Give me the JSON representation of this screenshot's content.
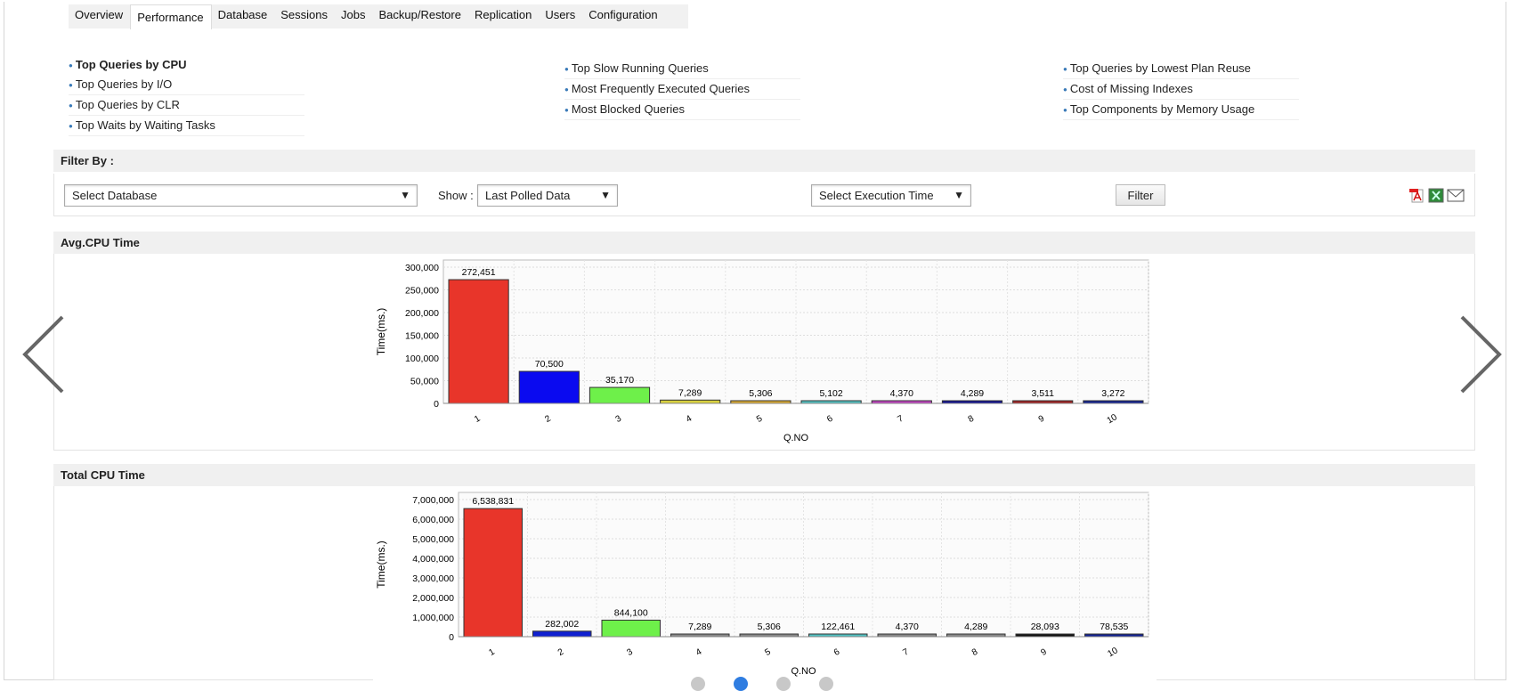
{
  "tabs": [
    {
      "label": "Overview"
    },
    {
      "label": "Performance",
      "active": true
    },
    {
      "label": "Database"
    },
    {
      "label": "Sessions"
    },
    {
      "label": "Jobs"
    },
    {
      "label": "Backup/Restore"
    },
    {
      "label": "Replication"
    },
    {
      "label": "Users"
    },
    {
      "label": "Configuration"
    }
  ],
  "links": {
    "col1": [
      "Top Queries by CPU",
      "Top Queries by I/O",
      "Top Queries by CLR",
      "Top Waits by Waiting Tasks"
    ],
    "col2": [
      "Top Slow Running Queries",
      "Most Frequently Executed Queries",
      "Most Blocked Queries"
    ],
    "col3": [
      "Top Queries by Lowest Plan Reuse",
      "Cost of Missing Indexes",
      "Top Components by Memory Usage"
    ]
  },
  "filter": {
    "title": "Filter By :",
    "database": "Select Database",
    "show_label": "Show :",
    "show_value": "Last Polled Data",
    "exec_time": "Select Execution Time",
    "button": "Filter",
    "export_icons": [
      "pdf-icon",
      "excel-icon",
      "email-icon"
    ]
  },
  "sections": {
    "avg": "Avg.CPU Time",
    "total": "Total CPU Time"
  },
  "carousel": {
    "slides": 4,
    "active": 2
  },
  "chart_data": [
    {
      "type": "bar",
      "title": "",
      "xlabel": "Q.NO",
      "ylabel": "Time(ms.)",
      "categories": [
        "1",
        "2",
        "3",
        "4",
        "5",
        "6",
        "7",
        "8",
        "9",
        "10"
      ],
      "values": [
        272451,
        70500,
        35170,
        7289,
        5306,
        5102,
        4370,
        4289,
        3511,
        3272
      ],
      "labels": [
        "272,451",
        "70,500",
        "35,170",
        "7,289",
        "5,306",
        "5,102",
        "4,370",
        "4,289",
        "3,511",
        "3,272"
      ],
      "ylim": [
        0,
        300000
      ],
      "yticks": [
        0,
        50000,
        100000,
        150000,
        200000,
        250000,
        300000
      ],
      "ytick_labels": [
        "0",
        "50,000",
        "100,000",
        "150,000",
        "200,000",
        "250,000",
        "300,000"
      ],
      "colors": [
        "#e8352a",
        "#0a0af0",
        "#6ef04a",
        "#d8d040",
        "#d8a830",
        "#50c0c0",
        "#c040c0",
        "#101090",
        "#a02020",
        "#102090"
      ],
      "grid": true
    },
    {
      "type": "bar",
      "title": "",
      "xlabel": "Q.NO",
      "ylabel": "Time(ms.)",
      "categories": [
        "1",
        "2",
        "3",
        "4",
        "5",
        "6",
        "7",
        "8",
        "9",
        "10"
      ],
      "values": [
        6538831,
        282002,
        844100,
        7289,
        5306,
        122461,
        4370,
        4289,
        28093,
        78535
      ],
      "labels": [
        "6,538,831",
        "282,002",
        "844,100",
        "7,289",
        "5,306",
        "122,461",
        "4,370",
        "4,289",
        "28,093",
        "78,535"
      ],
      "ylim": [
        0,
        7000000
      ],
      "yticks": [
        0,
        1000000,
        2000000,
        3000000,
        4000000,
        5000000,
        6000000,
        7000000
      ],
      "ytick_labels": [
        "0",
        "1,000,000",
        "2,000,000",
        "3,000,000",
        "4,000,000",
        "5,000,000",
        "6,000,000",
        "7,000,000"
      ],
      "colors": [
        "#e8352a",
        "#1020d0",
        "#6ef04a",
        "#888888",
        "#888888",
        "#50c0c0",
        "#888888",
        "#888888",
        "#111111",
        "#102090"
      ],
      "grid": true
    }
  ]
}
